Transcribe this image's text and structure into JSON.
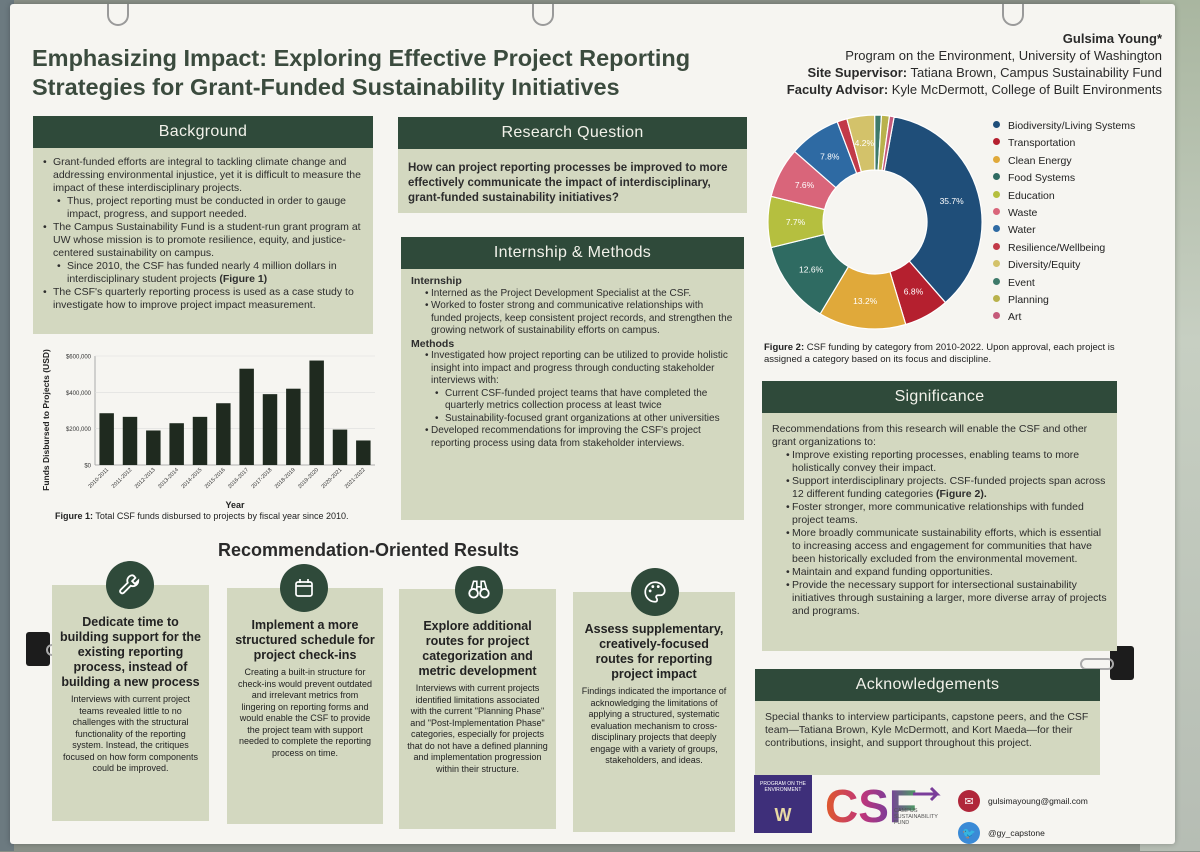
{
  "title_line1": "Emphasizing Impact: Exploring Effective Project Reporting",
  "title_line2": "Strategies for Grant-Funded Sustainability Initiatives",
  "author": "Gulsima Young*",
  "affiliation": "Program on the Environment, University of Washington",
  "site_supervisor_label": "Site Supervisor:",
  "site_supervisor": "Tatiana Brown, Campus Sustainability Fund",
  "faculty_advisor_label": "Faculty Advisor:",
  "faculty_advisor": "Kyle McDermott, College of Built Environments",
  "background": {
    "heading": "Background",
    "b1": "Grant-funded efforts are integral to tackling climate change and addressing environmental injustice, yet it is difficult to measure the impact of these interdisciplinary projects.",
    "b1a": "Thus, project reporting must be conducted in order to gauge impact, progress, and support needed.",
    "b2": "The Campus Sustainability Fund is a student-run grant program at UW whose mission is to promote resilience, equity, and justice-centered sustainability on campus.",
    "b2a": "Since 2010, the CSF has funded nearly 4 million dollars in interdisciplinary student projects",
    "b2a_ref": "(Figure 1)",
    "b3": "The CSF's quarterly reporting process is used as a case study to investigate how to improve project impact measurement."
  },
  "research_question": {
    "heading": "Research Question",
    "text": "How can project reporting processes be improved to more effectively communicate the impact of interdisciplinary, grant-funded sustainability initiatives?"
  },
  "methods": {
    "heading": "Internship & Methods",
    "internship_label": "Internship",
    "i1": "Interned as the Project Development Specialist at the CSF.",
    "i2": "Worked to foster strong and communicative relationships with funded projects, keep consistent project records, and strengthen the growing network of sustainability efforts on campus.",
    "methods_label": "Methods",
    "m1": "Investigated how project reporting can be utilized to provide holistic insight into impact and progress through conducting stakeholder interviews with:",
    "m1a": "Current CSF-funded project teams that have completed the quarterly metrics collection process at least twice",
    "m1b": "Sustainability-focused grant organizations at other universities",
    "m2": "Developed recommendations for improving the CSF's project reporting process using data from stakeholder interviews."
  },
  "chart_data": [
    {
      "type": "bar",
      "categories": [
        "2010-2011",
        "2011-2012",
        "2012-2013",
        "2013-2014",
        "2014-2015",
        "2015-2016",
        "2016-2017",
        "2017-2018",
        "2018-2019",
        "2019-2020",
        "2020-2021",
        "2021-2022"
      ],
      "values": [
        285000,
        265000,
        190000,
        230000,
        265000,
        340000,
        530000,
        390000,
        420000,
        575000,
        195000,
        135000
      ],
      "title": "",
      "xlabel": "Year",
      "ylabel": "Funds Disbursed to Projects (USD)",
      "ylim": [
        0,
        600000
      ],
      "yticks": [
        "$0",
        "$200,000",
        "$400,000",
        "$600,000"
      ],
      "color": "#1f2a1f"
    },
    {
      "type": "pie",
      "categories": [
        "Biodiversity/Living Systems",
        "Transportation",
        "Clean Energy",
        "Food Systems",
        "Education",
        "Waste",
        "Water",
        "Resilience/Wellbeing",
        "Diversity/Equity",
        "Event",
        "Planning",
        "Art"
      ],
      "values": [
        35.7,
        6.8,
        13.2,
        12.6,
        7.7,
        7.6,
        7.8,
        1.5,
        4.2,
        1.0,
        1.2,
        0.7
      ],
      "labels": [
        "35.7%",
        "6.8%",
        "13.2%",
        "12.6%",
        "7.7%",
        "7.6%",
        "7.8%",
        "",
        "4.2%",
        "",
        "",
        ""
      ],
      "colors": [
        "#1f4e79",
        "#b5202f",
        "#e0a93a",
        "#2f6b62",
        "#b5bf3f",
        "#d9657a",
        "#2e6aa3",
        "#c23a48",
        "#d3c26a",
        "#3e7a6a",
        "#b9b24c",
        "#c55a7a"
      ],
      "title": ""
    }
  ],
  "figure1_caption_label": "Figure 1:",
  "figure1_caption": "Total CSF funds disbursed to projects by fiscal year since 2010.",
  "figure2_caption_label": "Figure 2:",
  "figure2_caption": "CSF funding by category from 2010-2022. Upon approval, each project is assigned a category based on its focus and discipline.",
  "significance": {
    "heading": "Significance",
    "intro": "Recommendations from this research will enable the CSF and other grant organizations to:",
    "s1": "Improve existing reporting processes, enabling teams to more holistically convey their impact.",
    "s2": "Support interdisciplinary projects. CSF-funded projects span across 12 different funding categories",
    "s2_ref": "(Figure 2).",
    "s3": "Foster stronger, more communicative relationships with funded project teams.",
    "s4": "More broadly communicate sustainability efforts, which is essential to increasing access and engagement for communities that have been historically excluded from the environmental movement.",
    "s5": "Maintain and expand funding opportunities.",
    "s6": "Provide the necessary support for intersectional sustainability initiatives through sustaining a larger, more diverse array of projects and programs."
  },
  "acknowledgements": {
    "heading": "Acknowledgements",
    "text": "Special thanks to interview participants, capstone peers, and the CSF team—Tatiana Brown, Kyle McDermott, and Kort Maeda—for their contributions, insight, and support throughout this project."
  },
  "results_heading": "Recommendation-Oriented Results",
  "results": [
    {
      "icon": "wrench-icon",
      "title": "Dedicate time to building support for the existing reporting process, instead of building a new process",
      "body": "Interviews with current project teams revealed little to no challenges with the structural functionality of the reporting system. Instead, the critiques focused on how form components could be improved."
    },
    {
      "icon": "calendar-icon",
      "title": "Implement a more structured schedule for project check-ins",
      "body": "Creating a built-in structure for check-ins would prevent outdated and irrelevant metrics from lingering on reporting forms and would enable the CSF to provide the project team with support needed to complete the reporting process on time."
    },
    {
      "icon": "binoculars-icon",
      "title": "Explore additional routes for project categorization and metric development",
      "body": "Interviews with current projects identified limitations associated with the current \"Planning Phase\" and \"Post-Implementation Phase\" categories, especially for projects that do not have a defined planning and implementation progression within their structure."
    },
    {
      "icon": "palette-icon",
      "title": "Assess supplementary, creatively-focused routes for reporting project impact",
      "body": "Findings indicated the importance of acknowledging the limitations of applying a structured, systematic evaluation mechanism to cross-disciplinary projects that deeply engage with a variety of groups, stakeholders, and ideas."
    }
  ],
  "logo_uw_text": "PROGRAM ON THE ENVIRONMENT",
  "logo_uw_w": "W",
  "logo_csf": "CSF",
  "logo_csf_sub": "CAMPUS SUSTAINABILITY FUND",
  "email": "gulsimayoung@gmail.com",
  "twitter": "@gy_capstone",
  "colors": {
    "header": "#2f4a3a",
    "panel": "#d3d8c0",
    "title": "#3b4b3e"
  }
}
